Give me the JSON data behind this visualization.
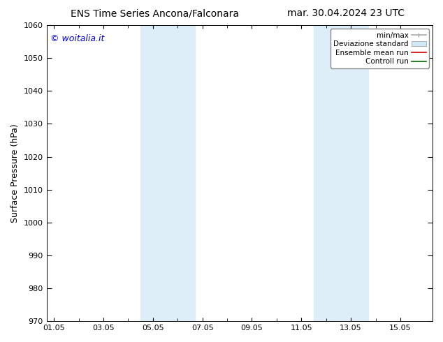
{
  "title_left": "ENS Time Series Ancona/Falconara",
  "title_right": "mar. 30.04.2024 23 UTC",
  "ylabel": "Surface Pressure (hPa)",
  "ylim": [
    970,
    1060
  ],
  "yticks": [
    970,
    980,
    990,
    1000,
    1010,
    1020,
    1030,
    1040,
    1050,
    1060
  ],
  "xtick_labels": [
    "01.05",
    "03.05",
    "05.05",
    "07.05",
    "09.05",
    "11.05",
    "13.05",
    "15.05"
  ],
  "xtick_positions": [
    0,
    2,
    4,
    6,
    8,
    10,
    12,
    14
  ],
  "xlim": [
    -0.3,
    15.3
  ],
  "shaded_bands": [
    {
      "x_start": 3.5,
      "x_end": 5.7,
      "color": "#ddeef8"
    },
    {
      "x_start": 10.5,
      "x_end": 12.7,
      "color": "#ddeef8"
    }
  ],
  "watermark": "© woitalia.it",
  "watermark_color": "#0000cc",
  "legend_entries": [
    {
      "label": "min/max",
      "color": "#aaaaaa",
      "lw": 1.2,
      "type": "line"
    },
    {
      "label": "Deviazione standard",
      "color": "#d0e8f5",
      "lw": 6,
      "type": "patch"
    },
    {
      "label": "Ensemble mean run",
      "color": "#cc0000",
      "lw": 1.2,
      "type": "line"
    },
    {
      "label": "Controll run",
      "color": "#006600",
      "lw": 1.2,
      "type": "line"
    }
  ],
  "background_color": "#ffffff",
  "plot_bg_color": "#ffffff",
  "title_fontsize": 10,
  "axis_label_fontsize": 9,
  "tick_fontsize": 8,
  "legend_fontsize": 7.5,
  "watermark_fontsize": 9
}
